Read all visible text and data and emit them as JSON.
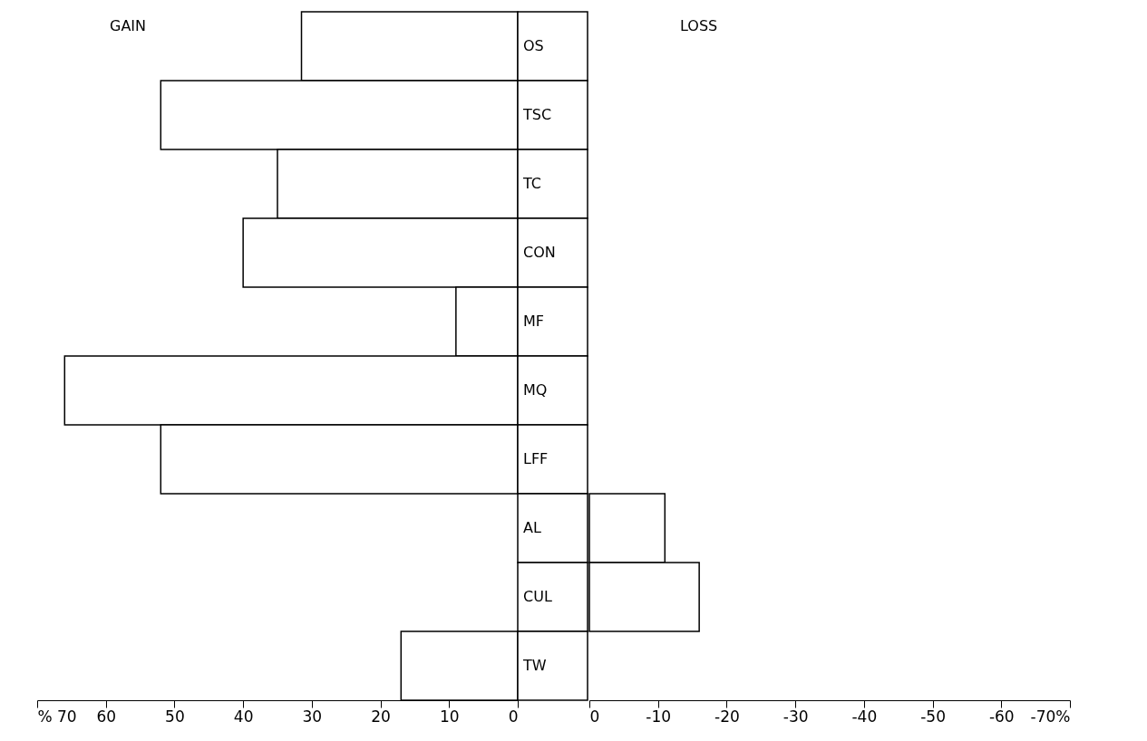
{
  "chart_data": [
    {
      "type": "bar",
      "orientation": "horizontal",
      "categories": [
        "OS",
        "TSC",
        "TC",
        "CON",
        "MF",
        "MQ",
        "LFF",
        "AL",
        "CUL",
        "TW"
      ],
      "values": [
        31.5,
        52,
        35,
        40,
        9,
        66,
        52,
        null,
        null,
        17
      ],
      "color": "#ffffff",
      "xlim": [
        70,
        0
      ],
      "xticks": [
        {
          "value": 70,
          "label": "% 70"
        },
        60,
        50,
        40,
        30,
        20,
        10,
        0
      ],
      "annotations": [
        "GAIN"
      ],
      "grid": false
    },
    {
      "type": "bar",
      "orientation": "horizontal",
      "categories": [
        null,
        null,
        null,
        null,
        null,
        null,
        null,
        null,
        null,
        null
      ],
      "values": [
        null,
        null,
        null,
        null,
        null,
        null,
        null,
        -11,
        -16,
        null
      ],
      "color": "#ffffff",
      "xlim": [
        0,
        -70
      ],
      "xticks": [
        0,
        -10,
        -20,
        -30,
        -40,
        -50,
        -60,
        {
          "value": -70,
          "label": "-70%"
        }
      ],
      "annotations": [
        "LOSS"
      ],
      "tick_labels": "x",
      "grid": false
    }
  ]
}
